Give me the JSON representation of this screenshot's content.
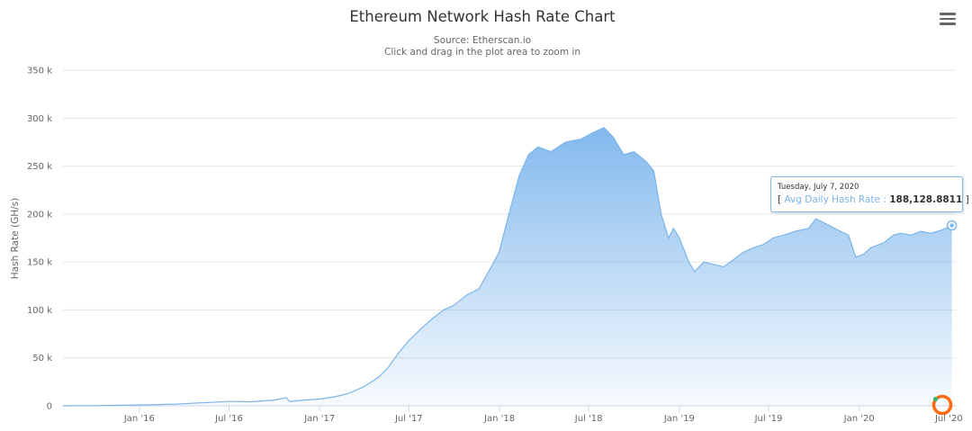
{
  "chart_data": {
    "type": "area",
    "title": "Ethereum Network Hash Rate Chart",
    "subtitle_lines": [
      "Source: Etherscan.io",
      "Click and drag in the plot area to zoom in"
    ],
    "ylabel": "Hash Rate (GH/s)",
    "ylim": [
      0,
      350000
    ],
    "yticks": [
      {
        "value": 0,
        "label": "0"
      },
      {
        "value": 50000,
        "label": "50 k"
      },
      {
        "value": 100000,
        "label": "100 k"
      },
      {
        "value": 150000,
        "label": "150 k"
      },
      {
        "value": 200000,
        "label": "200 k"
      },
      {
        "value": 250000,
        "label": "250 k"
      },
      {
        "value": 300000,
        "label": "300 k"
      },
      {
        "value": 350000,
        "label": "350 k"
      }
    ],
    "xlim": [
      "2015-07-30",
      "2020-07-15"
    ],
    "xticks": [
      {
        "date": "2016-01-01",
        "label": "Jan '16"
      },
      {
        "date": "2016-07-01",
        "label": "Jul '16"
      },
      {
        "date": "2017-01-01",
        "label": "Jan '17"
      },
      {
        "date": "2017-07-01",
        "label": "Jul '17"
      },
      {
        "date": "2018-01-01",
        "label": "Jan '18"
      },
      {
        "date": "2018-07-01",
        "label": "Jul '18"
      },
      {
        "date": "2019-01-01",
        "label": "Jan '19"
      },
      {
        "date": "2019-07-01",
        "label": "Jul '19"
      },
      {
        "date": "2020-01-01",
        "label": "Jan '20"
      },
      {
        "date": "2020-07-01",
        "label": "Jul '20"
      }
    ],
    "grid": true,
    "legend": "none",
    "series": [
      {
        "name": "Avg Daily Hash Rate",
        "color": "#7cb5ec",
        "points": [
          [
            "2015-07-30",
            0
          ],
          [
            "2015-10-01",
            150
          ],
          [
            "2016-01-01",
            800
          ],
          [
            "2016-03-15",
            1800
          ],
          [
            "2016-05-01",
            3000
          ],
          [
            "2016-07-01",
            4500
          ],
          [
            "2016-08-15",
            4200
          ],
          [
            "2016-10-01",
            6000
          ],
          [
            "2016-10-25",
            8500
          ],
          [
            "2016-11-01",
            4500
          ],
          [
            "2016-12-01",
            6000
          ],
          [
            "2017-01-01",
            7000
          ],
          [
            "2017-02-01",
            9500
          ],
          [
            "2017-03-01",
            13000
          ],
          [
            "2017-04-01",
            20000
          ],
          [
            "2017-05-01",
            30000
          ],
          [
            "2017-05-20",
            40000
          ],
          [
            "2017-06-10",
            55000
          ],
          [
            "2017-07-01",
            68000
          ],
          [
            "2017-07-25",
            80000
          ],
          [
            "2017-08-20",
            92000
          ],
          [
            "2017-09-10",
            100000
          ],
          [
            "2017-10-01",
            105000
          ],
          [
            "2017-10-25",
            115000
          ],
          [
            "2017-11-20",
            122000
          ],
          [
            "2017-12-10",
            140000
          ],
          [
            "2017-12-31",
            160000
          ],
          [
            "2018-01-20",
            200000
          ],
          [
            "2018-02-10",
            240000
          ],
          [
            "2018-03-01",
            262000
          ],
          [
            "2018-03-20",
            270000
          ],
          [
            "2018-04-15",
            265000
          ],
          [
            "2018-05-15",
            275000
          ],
          [
            "2018-06-15",
            278000
          ],
          [
            "2018-07-10",
            285000
          ],
          [
            "2018-08-01",
            290000
          ],
          [
            "2018-08-20",
            280000
          ],
          [
            "2018-09-10",
            262000
          ],
          [
            "2018-10-01",
            265000
          ],
          [
            "2018-10-25",
            255000
          ],
          [
            "2018-11-10",
            245000
          ],
          [
            "2018-11-25",
            200000
          ],
          [
            "2018-12-10",
            175000
          ],
          [
            "2018-12-20",
            185000
          ],
          [
            "2019-01-01",
            175000
          ],
          [
            "2019-01-20",
            150000
          ],
          [
            "2019-02-01",
            140000
          ],
          [
            "2019-02-20",
            150000
          ],
          [
            "2019-03-15",
            147000
          ],
          [
            "2019-04-01",
            145000
          ],
          [
            "2019-04-20",
            152000
          ],
          [
            "2019-05-10",
            160000
          ],
          [
            "2019-06-01",
            165000
          ],
          [
            "2019-06-20",
            168000
          ],
          [
            "2019-07-10",
            175000
          ],
          [
            "2019-08-01",
            178000
          ],
          [
            "2019-08-25",
            182000
          ],
          [
            "2019-09-20",
            185000
          ],
          [
            "2019-10-05",
            195000
          ],
          [
            "2019-10-25",
            190000
          ],
          [
            "2019-11-20",
            183000
          ],
          [
            "2019-12-10",
            178000
          ],
          [
            "2019-12-25",
            155000
          ],
          [
            "2020-01-10",
            158000
          ],
          [
            "2020-01-25",
            165000
          ],
          [
            "2020-02-20",
            170000
          ],
          [
            "2020-03-10",
            178000
          ],
          [
            "2020-03-25",
            180000
          ],
          [
            "2020-04-15",
            178000
          ],
          [
            "2020-05-05",
            182000
          ],
          [
            "2020-05-25",
            180000
          ],
          [
            "2020-06-15",
            183000
          ],
          [
            "2020-07-07",
            188128.8811
          ]
        ]
      }
    ],
    "tooltip": {
      "date": "Tuesday, July 7, 2020",
      "open_bracket": "[",
      "series_name": "Avg Daily Hash Rate",
      "separator": ":",
      "value": "188,128.8811",
      "close_bracket": "]"
    }
  },
  "colors": {
    "series": "#7cb5ec",
    "grid": "#e6e6e6",
    "loader": "#ff6a13",
    "loader_dot": "#3cb371"
  },
  "icons": {
    "menu": "hamburger-menu-icon",
    "loading": "loading-spinner-icon"
  }
}
